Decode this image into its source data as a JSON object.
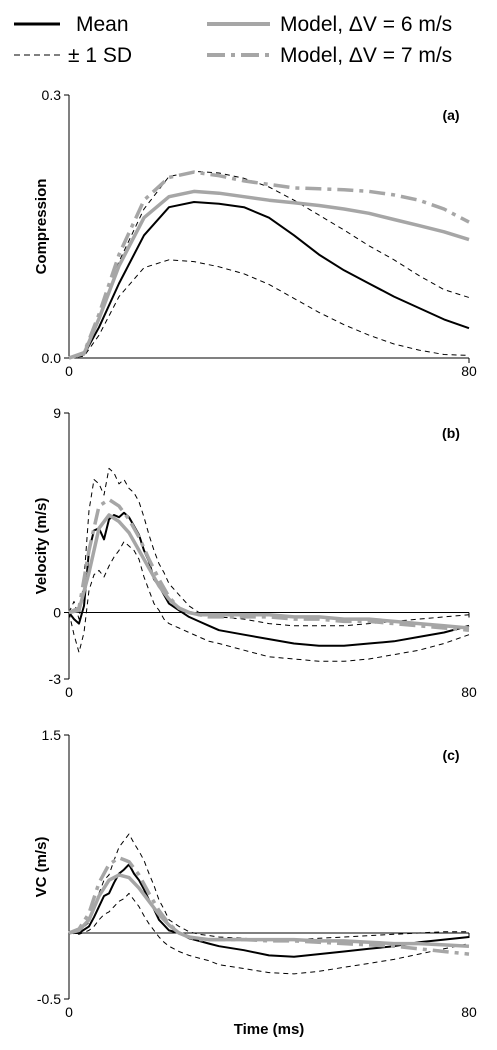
{
  "legend": [
    {
      "label": "Mean",
      "color": "#000000",
      "style": "solid-thick"
    },
    {
      "label": "± 1 SD",
      "color": "#000000",
      "style": "dashed-thin"
    },
    {
      "label": "Model, ΔV = 6 m/s",
      "color": "#a6a6a6",
      "style": "solid-thick"
    },
    {
      "label": "Model, ΔV = 7 m/s",
      "color": "#a6a6a6",
      "style": "dashed-thick"
    }
  ],
  "colors": {
    "mean": "#000000",
    "sd": "#000000",
    "model6": "#a6a6a6",
    "model7": "#a6a6a6"
  },
  "chart_data": [
    {
      "type": "line",
      "panel_label": "(a)",
      "ylabel": "Compression",
      "xlabel": "",
      "xlim": [
        0,
        80
      ],
      "ylim": [
        0.0,
        0.3
      ],
      "x_ticks": [
        "0",
        "80"
      ],
      "y_ticks": [
        "0.0",
        "0.3"
      ],
      "series": [
        {
          "name": "Mean",
          "x": [
            0,
            3,
            6,
            10,
            15,
            20,
            25,
            30,
            35,
            40,
            45,
            50,
            55,
            60,
            65,
            70,
            75,
            80
          ],
          "y": [
            0,
            0.004,
            0.035,
            0.085,
            0.14,
            0.172,
            0.178,
            0.176,
            0.172,
            0.16,
            0.14,
            0.118,
            0.1,
            0.085,
            0.07,
            0.057,
            0.044,
            0.034
          ]
        },
        {
          "name": "+1 SD",
          "x": [
            0,
            3,
            6,
            10,
            15,
            20,
            25,
            30,
            35,
            40,
            45,
            50,
            55,
            60,
            65,
            70,
            75,
            80
          ],
          "y": [
            0,
            0.005,
            0.043,
            0.11,
            0.17,
            0.207,
            0.213,
            0.211,
            0.205,
            0.195,
            0.18,
            0.163,
            0.146,
            0.128,
            0.112,
            0.094,
            0.078,
            0.069
          ]
        },
        {
          "name": "-1 SD",
          "x": [
            0,
            3,
            6,
            10,
            15,
            20,
            25,
            30,
            35,
            40,
            45,
            50,
            55,
            60,
            65,
            70,
            75,
            80
          ],
          "y": [
            0,
            0.002,
            0.026,
            0.07,
            0.103,
            0.112,
            0.11,
            0.104,
            0.096,
            0.084,
            0.068,
            0.052,
            0.038,
            0.026,
            0.016,
            0.009,
            0.004,
            0.003
          ]
        },
        {
          "name": "Model, ΔV = 6 m/s",
          "x": [
            0,
            3,
            6,
            10,
            15,
            20,
            25,
            30,
            35,
            40,
            45,
            50,
            55,
            60,
            65,
            70,
            75,
            80
          ],
          "y": [
            0,
            0.005,
            0.045,
            0.105,
            0.16,
            0.184,
            0.19,
            0.188,
            0.184,
            0.18,
            0.177,
            0.174,
            0.17,
            0.165,
            0.158,
            0.151,
            0.144,
            0.135
          ]
        },
        {
          "name": "Model, ΔV = 7 m/s",
          "x": [
            0,
            3,
            6,
            10,
            15,
            20,
            25,
            30,
            35,
            40,
            45,
            50,
            55,
            60,
            65,
            70,
            75,
            80
          ],
          "y": [
            0,
            0.006,
            0.05,
            0.118,
            0.18,
            0.206,
            0.212,
            0.208,
            0.202,
            0.198,
            0.194,
            0.193,
            0.192,
            0.19,
            0.186,
            0.18,
            0.17,
            0.155
          ]
        }
      ]
    },
    {
      "type": "line",
      "panel_label": "(b)",
      "ylabel": "Velocity (m/s)",
      "xlabel": "",
      "xlim": [
        0,
        80
      ],
      "ylim": [
        -3,
        9
      ],
      "x_ticks": [
        "0",
        "80"
      ],
      "y_ticks": [
        "-3",
        "0",
        "9"
      ],
      "series": [
        {
          "name": "Mean",
          "x": [
            0,
            1,
            2,
            3,
            4,
            5,
            6,
            7,
            8,
            9,
            10,
            11,
            12,
            13,
            14,
            15,
            16,
            17,
            18,
            19,
            20,
            22,
            24,
            26,
            28,
            30,
            35,
            40,
            45,
            50,
            55,
            60,
            65,
            70,
            75,
            80
          ],
          "y": [
            0,
            -0.3,
            -0.5,
            0.3,
            2.8,
            3.7,
            3.8,
            3.3,
            4.2,
            4.4,
            4.3,
            4.5,
            4.3,
            3.9,
            3.5,
            2.8,
            2.3,
            1.5,
            1.2,
            0.8,
            0.4,
            0.1,
            -0.2,
            -0.4,
            -0.6,
            -0.8,
            -1.0,
            -1.2,
            -1.4,
            -1.5,
            -1.5,
            -1.4,
            -1.3,
            -1.1,
            -0.9,
            -0.6
          ]
        },
        {
          "name": "+1 SD",
          "x": [
            0,
            1,
            2,
            3,
            4,
            5,
            6,
            7,
            8,
            9,
            10,
            11,
            12,
            13,
            14,
            15,
            16,
            17,
            18,
            19,
            20,
            22,
            24,
            26,
            28,
            30,
            35,
            40,
            45,
            50,
            55,
            60,
            65,
            70,
            75,
            80
          ],
          "y": [
            0,
            0.5,
            -0.3,
            1.5,
            4.6,
            6.0,
            5.8,
            5.3,
            6.5,
            6.3,
            5.8,
            6.0,
            5.6,
            5.4,
            5.0,
            4.3,
            3.5,
            2.8,
            2.2,
            1.8,
            1.3,
            0.8,
            0.3,
            0.0,
            -0.1,
            -0.2,
            -0.3,
            -0.5,
            -0.6,
            -0.6,
            -0.6,
            -0.5,
            -0.4,
            -0.3,
            -0.2,
            -0.1
          ]
        },
        {
          "name": "-1 SD",
          "x": [
            0,
            1,
            2,
            3,
            4,
            5,
            6,
            7,
            8,
            9,
            10,
            11,
            12,
            13,
            14,
            15,
            16,
            17,
            18,
            19,
            20,
            22,
            24,
            26,
            28,
            30,
            35,
            40,
            45,
            50,
            55,
            60,
            65,
            70,
            75,
            80
          ],
          "y": [
            0,
            -1.0,
            -1.8,
            -0.9,
            1.0,
            1.7,
            1.9,
            1.6,
            2.1,
            2.5,
            2.8,
            3.2,
            3.0,
            2.8,
            2.4,
            1.6,
            1.0,
            0.4,
            0.1,
            -0.3,
            -0.5,
            -0.7,
            -0.9,
            -1.1,
            -1.3,
            -1.4,
            -1.7,
            -2.0,
            -2.1,
            -2.2,
            -2.2,
            -2.1,
            -1.9,
            -1.7,
            -1.4,
            -1.0
          ]
        },
        {
          "name": "Model, ΔV = 6 m/s",
          "x": [
            0,
            2,
            4,
            6,
            8,
            10,
            12,
            14,
            16,
            18,
            20,
            22,
            24,
            26,
            28,
            30,
            35,
            40,
            45,
            50,
            55,
            60,
            65,
            70,
            75,
            80
          ],
          "y": [
            0,
            0.1,
            1.8,
            3.8,
            4.4,
            4.1,
            3.6,
            2.8,
            2.0,
            1.2,
            0.6,
            0.2,
            0.0,
            -0.1,
            -0.1,
            -0.1,
            -0.1,
            -0.1,
            -0.2,
            -0.2,
            -0.3,
            -0.3,
            -0.4,
            -0.5,
            -0.6,
            -0.7
          ]
        },
        {
          "name": "Model, ΔV = 7 m/s",
          "x": [
            0,
            2,
            4,
            6,
            8,
            10,
            12,
            14,
            16,
            18,
            20,
            22,
            24,
            26,
            28,
            30,
            35,
            40,
            45,
            50,
            55,
            60,
            65,
            70,
            75,
            80
          ],
          "y": [
            0,
            0.2,
            2.8,
            4.8,
            5.1,
            4.8,
            4.2,
            3.4,
            2.4,
            1.5,
            0.7,
            0.2,
            0.0,
            -0.1,
            -0.2,
            -0.2,
            -0.2,
            -0.2,
            -0.3,
            -0.3,
            -0.4,
            -0.4,
            -0.5,
            -0.6,
            -0.7,
            -0.8
          ]
        }
      ]
    },
    {
      "type": "line",
      "panel_label": "(c)",
      "ylabel": "VC (m/s)",
      "xlabel": "Time (ms)",
      "xlim": [
        0,
        80
      ],
      "ylim": [
        -0.5,
        1.5
      ],
      "x_ticks": [
        "0",
        "80"
      ],
      "y_ticks": [
        "-0.5",
        "1.5"
      ],
      "series": [
        {
          "name": "Mean",
          "x": [
            0,
            2,
            4,
            5,
            6,
            7,
            8,
            9,
            10,
            11,
            12,
            13,
            14,
            15,
            16,
            17,
            18,
            19,
            20,
            22,
            24,
            26,
            28,
            30,
            35,
            40,
            45,
            50,
            55,
            60,
            65,
            70,
            75,
            80
          ],
          "y": [
            0,
            0.0,
            0.05,
            0.12,
            0.2,
            0.28,
            0.3,
            0.38,
            0.45,
            0.48,
            0.52,
            0.45,
            0.4,
            0.33,
            0.25,
            0.18,
            0.1,
            0.06,
            0.02,
            0.0,
            -0.04,
            -0.06,
            -0.08,
            -0.1,
            -0.13,
            -0.17,
            -0.18,
            -0.16,
            -0.14,
            -0.12,
            -0.1,
            -0.07,
            -0.05,
            -0.03
          ]
        },
        {
          "name": "+1 SD",
          "x": [
            0,
            2,
            4,
            5,
            6,
            7,
            8,
            9,
            10,
            11,
            12,
            13,
            14,
            15,
            16,
            17,
            18,
            19,
            20,
            22,
            24,
            26,
            28,
            30,
            35,
            40,
            45,
            50,
            55,
            60,
            65,
            70,
            75,
            80
          ],
          "y": [
            0,
            0.01,
            0.08,
            0.18,
            0.3,
            0.4,
            0.44,
            0.55,
            0.65,
            0.7,
            0.75,
            0.68,
            0.62,
            0.55,
            0.45,
            0.36,
            0.25,
            0.18,
            0.1,
            0.05,
            0.01,
            -0.01,
            -0.02,
            -0.03,
            -0.04,
            -0.05,
            -0.05,
            -0.04,
            -0.03,
            -0.02,
            -0.01,
            0.0,
            0.01,
            0.01
          ]
        },
        {
          "name": "-1 SD",
          "x": [
            0,
            2,
            4,
            5,
            6,
            7,
            8,
            9,
            10,
            11,
            12,
            13,
            14,
            15,
            16,
            17,
            18,
            19,
            20,
            22,
            24,
            26,
            28,
            30,
            35,
            40,
            45,
            50,
            55,
            60,
            65,
            70,
            75,
            80
          ],
          "y": [
            0,
            -0.01,
            0.02,
            0.05,
            0.1,
            0.14,
            0.16,
            0.2,
            0.24,
            0.26,
            0.3,
            0.25,
            0.2,
            0.13,
            0.07,
            0.02,
            -0.03,
            -0.07,
            -0.1,
            -0.14,
            -0.17,
            -0.19,
            -0.21,
            -0.24,
            -0.27,
            -0.3,
            -0.31,
            -0.29,
            -0.26,
            -0.23,
            -0.2,
            -0.16,
            -0.12,
            -0.08
          ]
        },
        {
          "name": "Model, ΔV = 6 m/s",
          "x": [
            0,
            2,
            4,
            6,
            8,
            10,
            12,
            14,
            16,
            18,
            20,
            22,
            24,
            26,
            28,
            30,
            35,
            40,
            45,
            50,
            55,
            60,
            65,
            70,
            75,
            80
          ],
          "y": [
            0,
            0.02,
            0.1,
            0.28,
            0.4,
            0.44,
            0.42,
            0.34,
            0.24,
            0.14,
            0.06,
            0.0,
            -0.03,
            -0.04,
            -0.05,
            -0.05,
            -0.05,
            -0.05,
            -0.05,
            -0.06,
            -0.06,
            -0.07,
            -0.08,
            -0.08,
            -0.09,
            -0.1
          ]
        },
        {
          "name": "Model, ΔV = 7 m/s",
          "x": [
            0,
            2,
            4,
            6,
            8,
            10,
            12,
            14,
            16,
            18,
            20,
            22,
            24,
            26,
            28,
            30,
            35,
            40,
            45,
            50,
            55,
            60,
            65,
            70,
            75,
            80
          ],
          "y": [
            0,
            0.03,
            0.15,
            0.38,
            0.52,
            0.57,
            0.54,
            0.44,
            0.3,
            0.17,
            0.07,
            0.0,
            -0.03,
            -0.05,
            -0.05,
            -0.05,
            -0.05,
            -0.06,
            -0.06,
            -0.07,
            -0.08,
            -0.09,
            -0.1,
            -0.12,
            -0.14,
            -0.16
          ]
        }
      ]
    }
  ]
}
